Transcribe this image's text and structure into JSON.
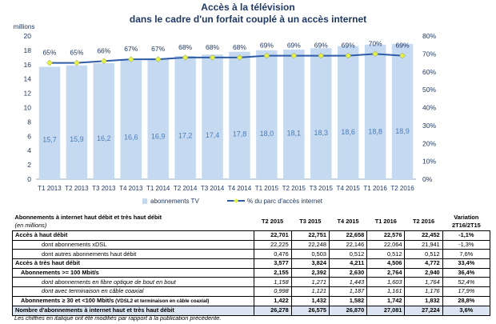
{
  "title": {
    "line1": "Accès à la télévision",
    "line2": "dans le cadre d'un forfait couplé à un accès internet"
  },
  "chart_data": {
    "type": "bar",
    "categories": [
      "T1 2013",
      "T2 2013",
      "T3 2013",
      "T4 2013",
      "T1 2014",
      "T2 2014",
      "T3 2014",
      "T4 2014",
      "T1 2015",
      "T2 2015",
      "T3 2015",
      "T4 2015",
      "T1 2016",
      "T2 2016"
    ],
    "series": [
      {
        "name": "abonnements TV",
        "type": "bar",
        "axis": "left",
        "values": [
          15.7,
          15.9,
          16.2,
          16.6,
          16.9,
          17.2,
          17.4,
          17.8,
          18.0,
          18.1,
          18.3,
          18.6,
          18.8,
          18.9
        ],
        "labels": [
          "15,7",
          "15,9",
          "16,2",
          "16,6",
          "16,9",
          "17,2",
          "17,4",
          "17,8",
          "18,0",
          "18,1",
          "18,3",
          "18,6",
          "18,8",
          "18,9"
        ]
      },
      {
        "name": "% du parc d'accès internet",
        "type": "line",
        "axis": "right",
        "values": [
          65,
          65,
          66,
          67,
          67,
          68,
          68,
          68,
          69,
          69,
          69,
          69,
          70,
          69
        ],
        "labels": [
          "65%",
          "65%",
          "66%",
          "67%",
          "67%",
          "68%",
          "68%",
          "68%",
          "69%",
          "69%",
          "69%",
          "69%",
          "70%",
          "69%"
        ]
      }
    ],
    "ylabel": "millions",
    "ylim": [
      0,
      20
    ],
    "yticks": [
      "0",
      "2",
      "4",
      "6",
      "8",
      "10",
      "12",
      "14",
      "16",
      "18",
      "20"
    ],
    "y2lim": [
      0,
      80
    ],
    "y2ticks": [
      "0%",
      "10%",
      "20%",
      "30%",
      "40%",
      "50%",
      "60%",
      "70%",
      "80%"
    ],
    "legend_position": "bottom",
    "colors": {
      "bar": "#c5d9f1",
      "bar_label": "#4a7ebb",
      "line": "#2e5ca8",
      "marker": "#e6f04b",
      "axis_text": "#1f3864"
    }
  },
  "table": {
    "header": {
      "label": "Abonnements à internet haut débit et très haut débit",
      "unit": "(en millions)",
      "columns": [
        "T2 2015",
        "T3 2015",
        "T4 2015",
        "T1 2016",
        "T2 2016"
      ],
      "variation_line1": "Variation",
      "variation_line2": "2T16/2T15"
    },
    "rows": [
      {
        "label": "Accès à haut débit",
        "values": [
          "22,701",
          "22,751",
          "22,658",
          "22,576",
          "22,452"
        ],
        "variation": "-1,1%",
        "style": "bold"
      },
      {
        "label": "dont abonnements xDSL",
        "values": [
          "22,225",
          "22,248",
          "22,146",
          "22,064",
          "21,941"
        ],
        "variation": "-1,3%",
        "style": "ind2"
      },
      {
        "label": "dont autres abonnements haut débit",
        "values": [
          "0,476",
          "0,503",
          "0,512",
          "0,512",
          "0,512"
        ],
        "variation": "7,6%",
        "style": "ind2"
      },
      {
        "label": "Accès à très haut débit",
        "values": [
          "3,577",
          "3,824",
          "4,211",
          "4,506",
          "4,772"
        ],
        "variation": "33,4%",
        "style": "bold"
      },
      {
        "label": "Abonnements >= 100 Mbit/s",
        "values": [
          "2,155",
          "2,392",
          "2,630",
          "2,764",
          "2,940"
        ],
        "variation": "36,4%",
        "style": "bold ind3"
      },
      {
        "label": "dont abonnements en fibre optique de bout en bout",
        "values": [
          "1,158",
          "1,271",
          "1,443",
          "1,603",
          "1,764"
        ],
        "variation": "52,4%",
        "style": "ind2 italic"
      },
      {
        "label": "dont avec terminaison en câble coaxial",
        "values": [
          "0,998",
          "1,121",
          "1,187",
          "1,161",
          "1,176"
        ],
        "variation": "17,9%",
        "style": "ind2 italic"
      },
      {
        "label": "Abonnements ≥ 30 et <100 Mbit/s",
        "label_small": "(VDSL2 et terminaison en câble coaxial)",
        "values": [
          "1,422",
          "1,432",
          "1,582",
          "1,742",
          "1,832"
        ],
        "variation": "28,8%",
        "style": "bold ind3"
      },
      {
        "label": "Nombre d'abonnements à internet haut et très haut débit",
        "values": [
          "26,278",
          "26,575",
          "26,870",
          "27,081",
          "27,224"
        ],
        "variation": "3,6%",
        "style": "bold shade"
      }
    ]
  },
  "footnote": "Les chiffres en italique ont été modifiés par rapport à la publication précédente."
}
